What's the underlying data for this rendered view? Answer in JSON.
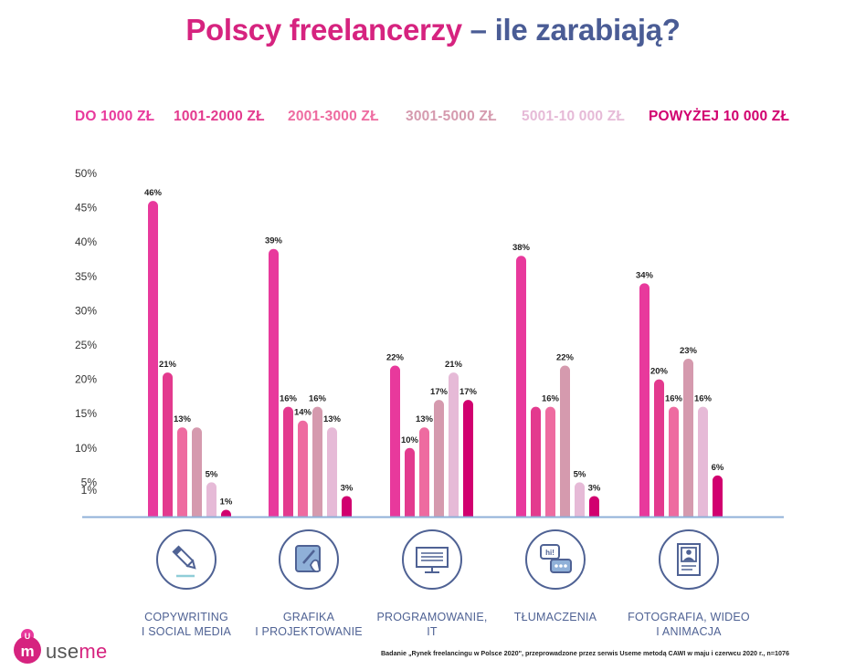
{
  "title": {
    "part1": "Polscy freelancerzy",
    "part2": "– ile zarabiają?"
  },
  "legend": [
    {
      "label": "DO 1000 ZŁ",
      "color": "#e8399c"
    },
    {
      "label": "1001-2000 ZŁ",
      "color": "#e33a8e"
    },
    {
      "label": "2001-3000 ZŁ",
      "color": "#ee6ba0"
    },
    {
      "label": "3001-5000 ZŁ",
      "color": "#d59aae"
    },
    {
      "label": "5001-10 000 ZŁ",
      "color": "#e6bad7"
    },
    {
      "label": "POWYŻEJ 10 000 ZŁ",
      "color": "#d1006f"
    }
  ],
  "chart_data": {
    "type": "bar",
    "title": "Polscy freelancerzy – ile zarabiają?",
    "categories": [
      "COPYWRITING\nI SOCIAL MEDIA",
      "GRAFIKA\nI PROJEKTOWANIE",
      "PROGRAMOWANIE,\nIT",
      "TŁUMACZENIA",
      "FOTOGRAFIA, WIDEO\nI ANIMACJA"
    ],
    "series": [
      {
        "name": "DO 1000 ZŁ",
        "values": [
          46,
          39,
          22,
          38,
          34
        ]
      },
      {
        "name": "1001-2000 ZŁ",
        "values": [
          21,
          16,
          10,
          16,
          20
        ]
      },
      {
        "name": "2001-3000 ZŁ",
        "values": [
          13,
          14,
          13,
          16,
          16
        ]
      },
      {
        "name": "3001-5000 ZŁ",
        "values": [
          13,
          16,
          17,
          22,
          23
        ]
      },
      {
        "name": "5001-10 000 ZŁ",
        "values": [
          5,
          13,
          21,
          5,
          16
        ]
      },
      {
        "name": "POWYŻEJ 10 000 ZŁ",
        "values": [
          1,
          3,
          17,
          3,
          6
        ]
      }
    ],
    "data_labels": [
      [
        "46%",
        "21%",
        "13%",
        "",
        "5%",
        "1%"
      ],
      [
        "39%",
        "16%",
        "14%",
        "16%",
        "13%",
        "3%"
      ],
      [
        "22%",
        "10%",
        "13%",
        "17%",
        "21%",
        "17%"
      ],
      [
        "38%",
        "",
        "16%",
        "22%",
        "5%",
        "3%"
      ],
      [
        "34%",
        "20%",
        "16%",
        "23%",
        "16%",
        "6%"
      ]
    ],
    "y_ticks": [
      "50%",
      "45%",
      "40%",
      "35%",
      "30%",
      "25%",
      "20%",
      "15%",
      "10%",
      "5%",
      "1%"
    ],
    "y_tick_values": [
      50,
      45,
      40,
      35,
      30,
      25,
      20,
      15,
      10,
      5,
      1
    ],
    "ylim": [
      0,
      50
    ],
    "grid": false,
    "legend_position": "top"
  },
  "categories_display": [
    {
      "line1": "COPYWRITING",
      "line2": "I SOCIAL MEDIA",
      "icon": "pencil-icon"
    },
    {
      "line1": "GRAFIKA",
      "line2": "I PROJEKTOWANIE",
      "icon": "tablet-pen-icon"
    },
    {
      "line1": "PROGRAMOWANIE,",
      "line2": "IT",
      "icon": "monitor-icon"
    },
    {
      "line1": "TŁUMACZENIA",
      "line2": "",
      "icon": "speech-bubbles-icon"
    },
    {
      "line1": "FOTOGRAFIA, WIDEO",
      "line2": "I ANIMACJA",
      "icon": "photo-frame-icon"
    }
  ],
  "colors": {
    "accent": "#d6237f",
    "secondary": "#4a5c95",
    "axis": "#8fb0d8"
  },
  "logo": {
    "text_part1": "use",
    "text_part2": "me"
  },
  "footnote": "Badanie „Rynek freelancingu w Polsce 2020\", przeprowadzone przez serwis Useme metodą CAWI w maju i czerwcu 2020 r., n=1076"
}
